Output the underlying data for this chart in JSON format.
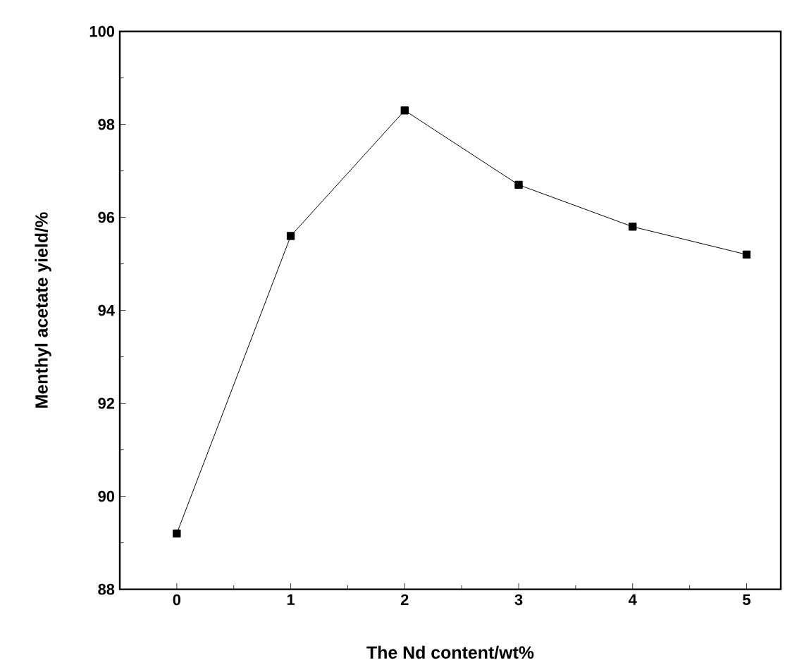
{
  "chart_data": {
    "type": "line",
    "xlabel": "The Nd content/wt%",
    "ylabel": "Menthyl acetate yield/%",
    "x": [
      0,
      1,
      2,
      3,
      4,
      5
    ],
    "series": [
      {
        "color": "#000000",
        "values": [
          89.2,
          95.6,
          98.3,
          96.7,
          95.8,
          95.2
        ]
      }
    ],
    "xlim": [
      -0.5,
      5.3
    ],
    "xticks": [
      0,
      1,
      2,
      3,
      4,
      5
    ],
    "ylim": [
      88,
      100
    ],
    "yticks": [
      88,
      90,
      92,
      94,
      96,
      98,
      100
    ],
    "marker": "square",
    "line_style": "solid"
  }
}
